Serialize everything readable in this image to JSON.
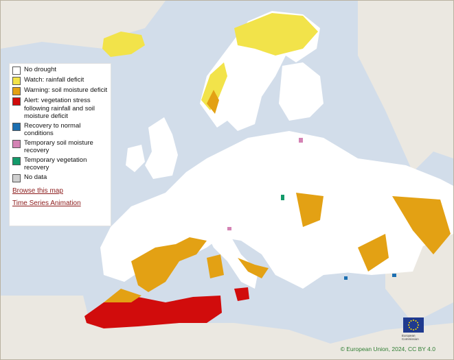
{
  "legend": {
    "items": [
      {
        "label": "No drought",
        "color": "#ffffff"
      },
      {
        "label": "Watch: rainfall deficit",
        "color": "#f2e34a"
      },
      {
        "label": "Warning: soil moisture deficit",
        "color": "#e3a114"
      },
      {
        "label": "Alert: vegetation stress following rainfall and soil moisture  deficit",
        "color": "#d10c0c"
      },
      {
        "label": "Recovery to normal conditions",
        "color": "#1c6fb1"
      },
      {
        "label": "Temporary soil moisture recovery",
        "color": "#d483b4"
      },
      {
        "label": "Temporary vegetation recovery",
        "color": "#139a6a"
      },
      {
        "label": "No data",
        "color": "#cfcfcf"
      }
    ],
    "links": {
      "browse": "Browse this map",
      "animation": "Time Series Animation"
    }
  },
  "credit": "© European Union, 2024, CC BY 4.0",
  "logo": {
    "caption_line1": "European",
    "caption_line2": "Commission"
  },
  "colors": {
    "sea": "#d2ddea",
    "land_outside": "#ebe8e1",
    "border": "#b9b1a0"
  }
}
